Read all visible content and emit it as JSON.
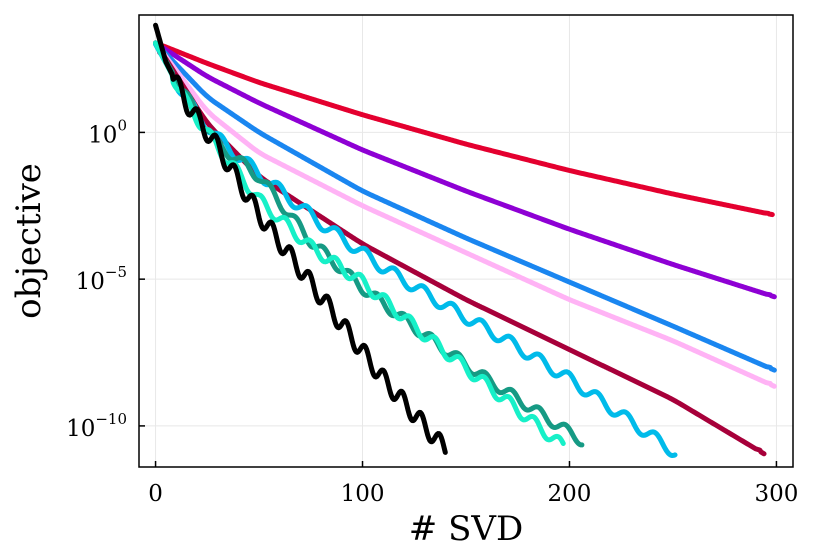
{
  "chart_data": {
    "type": "line",
    "title": "",
    "xlabel": "# SVD",
    "ylabel": "objective",
    "xlim": [
      -8,
      308
    ],
    "ylim_log10": [
      -11.4,
      4.0
    ],
    "yscale": "log",
    "grid": true,
    "legend": "none",
    "x_ticks": [
      {
        "value": 0,
        "label": "0"
      },
      {
        "value": 100,
        "label": "100"
      },
      {
        "value": 200,
        "label": "200"
      },
      {
        "value": 300,
        "label": "300"
      }
    ],
    "y_ticks": [
      {
        "value": 0,
        "base": "10",
        "exp": "0"
      },
      {
        "value": -5,
        "base": "10",
        "exp": "−5"
      },
      {
        "value": -10,
        "base": "10",
        "exp": "−10"
      }
    ],
    "series": [
      {
        "name": "black",
        "color": "#000000",
        "x_end": 140,
        "knots": [
          [
            0,
            3.65
          ],
          [
            5,
            2.4
          ],
          [
            15,
            1.0
          ],
          [
            30,
            -0.5
          ],
          [
            50,
            -2.8
          ],
          [
            80,
            -5.6
          ],
          [
            110,
            -8.4
          ],
          [
            140,
            -10.8
          ]
        ],
        "wave_amp": 0.3,
        "wave_period": 9
      },
      {
        "name": "aquamarine",
        "color": "#17f0c8",
        "x_end": 197,
        "knots": [
          [
            0,
            3.05
          ],
          [
            15,
            1.0
          ],
          [
            30,
            -0.5
          ],
          [
            50,
            -2.3
          ],
          [
            75,
            -3.9
          ],
          [
            100,
            -5.1
          ],
          [
            130,
            -6.9
          ],
          [
            160,
            -8.6
          ],
          [
            197,
            -10.7
          ]
        ],
        "wave_amp": 0.2,
        "wave_period": 12
      },
      {
        "name": "teal",
        "color": "#169a84",
        "x_end": 206,
        "knots": [
          [
            0,
            3.05
          ],
          [
            15,
            1.2
          ],
          [
            30,
            -0.4
          ],
          [
            50,
            -1.5
          ],
          [
            75,
            -3.7
          ],
          [
            100,
            -5.3
          ],
          [
            130,
            -6.9
          ],
          [
            160,
            -8.4
          ],
          [
            206,
            -10.5
          ]
        ],
        "wave_amp": 0.18,
        "wave_period": 13
      },
      {
        "name": "sky",
        "color": "#00bbea",
        "x_end": 251,
        "knots": [
          [
            0,
            3.0
          ],
          [
            15,
            1.1
          ],
          [
            30,
            -0.2
          ],
          [
            50,
            -1.4
          ],
          [
            80,
            -3.1
          ],
          [
            110,
            -4.6
          ],
          [
            140,
            -5.9
          ],
          [
            170,
            -7.1
          ],
          [
            200,
            -8.4
          ],
          [
            251,
            -10.9
          ]
        ],
        "wave_amp": 0.2,
        "wave_period": 14
      },
      {
        "name": "crimson-dark",
        "color": "#a7003a",
        "x_end": 294,
        "knots": [
          [
            0,
            3.05
          ],
          [
            25,
            0.3
          ],
          [
            50,
            -1.5
          ],
          [
            100,
            -3.8
          ],
          [
            150,
            -5.7
          ],
          [
            200,
            -7.4
          ],
          [
            250,
            -9.1
          ],
          [
            294,
            -10.95
          ]
        ],
        "wave_amp": 0,
        "wave_period": 0
      },
      {
        "name": "pink",
        "color": "#ffb3f5",
        "x_end": 299,
        "knots": [
          [
            0,
            3.05
          ],
          [
            25,
            0.7
          ],
          [
            50,
            -0.7
          ],
          [
            100,
            -2.5
          ],
          [
            150,
            -4.1
          ],
          [
            200,
            -5.7
          ],
          [
            250,
            -7.1
          ],
          [
            299,
            -8.65
          ]
        ],
        "wave_amp": 0,
        "wave_period": 0
      },
      {
        "name": "blue",
        "color": "#1a86f0",
        "x_end": 299,
        "knots": [
          [
            0,
            3.05
          ],
          [
            25,
            1.2
          ],
          [
            50,
            0.0
          ],
          [
            100,
            -2.0
          ],
          [
            150,
            -3.6
          ],
          [
            200,
            -5.1
          ],
          [
            250,
            -6.6
          ],
          [
            299,
            -8.1
          ]
        ],
        "wave_amp": 0,
        "wave_period": 0
      },
      {
        "name": "purple",
        "color": "#8e00d4",
        "x_end": 299,
        "knots": [
          [
            0,
            3.05
          ],
          [
            25,
            1.9
          ],
          [
            50,
            1.0
          ],
          [
            100,
            -0.6
          ],
          [
            150,
            -2.0
          ],
          [
            200,
            -3.3
          ],
          [
            250,
            -4.5
          ],
          [
            299,
            -5.6
          ]
        ],
        "wave_amp": 0,
        "wave_period": 0
      },
      {
        "name": "red",
        "color": "#e4002f",
        "x_end": 298,
        "knots": [
          [
            0,
            3.05
          ],
          [
            25,
            2.35
          ],
          [
            50,
            1.7
          ],
          [
            100,
            0.6
          ],
          [
            150,
            -0.4
          ],
          [
            200,
            -1.3
          ],
          [
            250,
            -2.1
          ],
          [
            298,
            -2.8
          ]
        ],
        "wave_amp": 0,
        "wave_period": 0
      }
    ]
  }
}
